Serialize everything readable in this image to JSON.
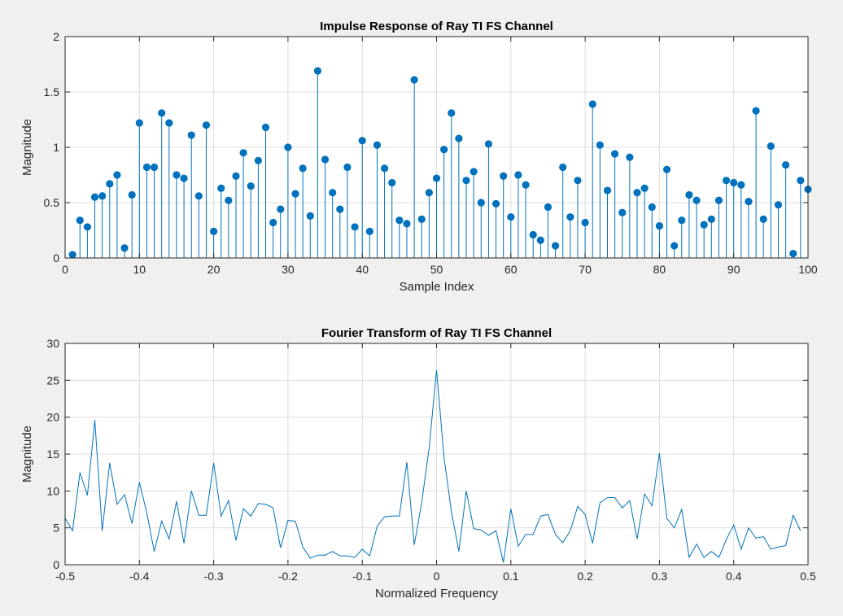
{
  "chart_data": [
    {
      "type": "stem",
      "title": "Impulse Response of Ray TI FS Channel",
      "xlabel": "Sample Index",
      "ylabel": "Magnitude",
      "xlim": [
        0,
        100
      ],
      "ylim": [
        0,
        2
      ],
      "xticks": [
        "0",
        "10",
        "20",
        "30",
        "40",
        "50",
        "60",
        "70",
        "80",
        "90",
        "100"
      ],
      "yticks": [
        "0",
        "0.5",
        "1",
        "1.5",
        "2"
      ],
      "grid": true,
      "color": "#0072bd",
      "x_start": 1,
      "values": [
        0.03,
        0.34,
        0.28,
        0.55,
        0.56,
        0.67,
        0.75,
        0.09,
        0.57,
        1.22,
        0.82,
        0.82,
        1.31,
        1.22,
        0.75,
        0.72,
        1.11,
        0.56,
        1.2,
        0.24,
        0.63,
        0.52,
        0.74,
        0.95,
        0.65,
        0.88,
        1.18,
        0.32,
        0.44,
        1.0,
        0.58,
        0.81,
        0.38,
        1.69,
        0.89,
        0.59,
        0.44,
        0.82,
        0.28,
        1.06,
        0.24,
        1.02,
        0.81,
        0.68,
        0.34,
        0.31,
        1.61,
        0.35,
        0.59,
        0.72,
        0.98,
        1.31,
        1.08,
        0.7,
        0.78,
        0.5,
        1.03,
        0.49,
        0.74,
        0.37,
        0.75,
        0.66,
        0.21,
        0.16,
        0.46,
        0.11,
        0.82,
        0.37,
        0.7,
        0.32,
        1.39,
        1.02,
        0.61,
        0.94,
        0.41,
        0.91,
        0.59,
        0.63,
        0.46,
        0.29,
        0.8,
        0.11,
        0.34,
        0.57,
        0.52,
        0.3,
        0.35,
        0.52,
        0.7,
        0.68,
        0.66,
        0.51,
        1.33,
        0.35,
        1.01,
        0.48,
        0.84,
        0.04,
        0.7,
        0.62
      ]
    },
    {
      "type": "line",
      "title": "Fourier Transform of Ray TI FS Channel",
      "xlabel": "Normalized Frequency",
      "ylabel": "Magnitude",
      "xlim": [
        -0.5,
        0.5
      ],
      "ylim": [
        0,
        30
      ],
      "xticks": [
        "-0.5",
        "-0.4",
        "-0.3",
        "-0.2",
        "-0.1",
        "0",
        "0.1",
        "0.2",
        "0.3",
        "0.4",
        "0.5"
      ],
      "yticks": [
        "0",
        "5",
        "10",
        "15",
        "20",
        "25",
        "30"
      ],
      "grid": true,
      "color": "#0072bd",
      "x_start": -0.5,
      "x_step": 0.01,
      "values": [
        6.3,
        4.6,
        12.5,
        9.4,
        19.6,
        4.6,
        13.8,
        8.2,
        9.5,
        5.6,
        11.2,
        7.0,
        1.8,
        5.9,
        3.5,
        8.6,
        2.9,
        10.0,
        6.7,
        6.7,
        13.8,
        6.6,
        8.7,
        3.3,
        7.6,
        6.6,
        8.3,
        8.2,
        7.7,
        2.3,
        6.0,
        5.9,
        2.4,
        0.9,
        1.3,
        1.3,
        1.8,
        1.2,
        1.2,
        1.0,
        2.1,
        1.2,
        5.2,
        6.5,
        6.6,
        6.6,
        13.9,
        2.7,
        8.4,
        15.8,
        26.4,
        14.6,
        7.2,
        1.8,
        10.0,
        4.9,
        4.7,
        4.0,
        4.6,
        0.3,
        7.6,
        2.5,
        4.1,
        4.1,
        6.6,
        6.8,
        4.1,
        3.0,
        4.6,
        7.9,
        6.8,
        2.9,
        8.4,
        9.1,
        9.1,
        7.7,
        8.7,
        3.5,
        9.6,
        8.0,
        15.1,
        6.3,
        5.0,
        7.5,
        1.0,
        2.8,
        1.0,
        1.8,
        1.0,
        3.4,
        5.4,
        2.1,
        5.0,
        3.6,
        3.8,
        2.1,
        2.4,
        2.6,
        6.7,
        4.6
      ]
    }
  ]
}
